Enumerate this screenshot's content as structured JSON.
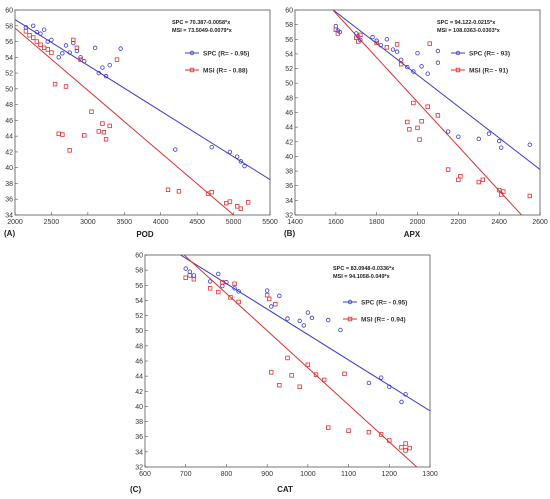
{
  "colors": {
    "spc": "#3b3bd6",
    "msi": "#e03030"
  },
  "chart_data": [
    {
      "type": "scatter",
      "panel_label": "(A)",
      "xlabel": "POD",
      "ylabel": "",
      "xlim": [
        2000,
        5500
      ],
      "ylim": [
        34,
        60
      ],
      "xticks": [
        2000,
        2500,
        3000,
        3500,
        4000,
        4500,
        5000,
        5500
      ],
      "yticks": [
        34,
        36,
        38,
        40,
        42,
        44,
        46,
        48,
        50,
        52,
        54,
        56,
        58,
        60
      ],
      "equations": [
        "SPC = 70.387-0.0058*x",
        "MSI = 73.5049-0.0079*x"
      ],
      "series": [
        {
          "name": "SPC (R= - 0.95)",
          "marker": "circle",
          "color": "#3b3bd6",
          "fit": {
            "intercept": 70.387,
            "slope": -0.0058
          },
          "points": [
            [
              2150,
              57.8
            ],
            [
              2250,
              58
            ],
            [
              2300,
              57.2
            ],
            [
              2350,
              57
            ],
            [
              2400,
              57.5
            ],
            [
              2450,
              56
            ],
            [
              2500,
              56.2
            ],
            [
              2600,
              54
            ],
            [
              2650,
              54.5
            ],
            [
              2700,
              55.5
            ],
            [
              2750,
              54.6
            ],
            [
              2800,
              55.8
            ],
            [
              2850,
              54.8
            ],
            [
              2900,
              54
            ],
            [
              2950,
              53.5
            ],
            [
              3100,
              55.2
            ],
            [
              3150,
              52
            ],
            [
              3200,
              52.7
            ],
            [
              3250,
              51.6
            ],
            [
              3300,
              53
            ],
            [
              3450,
              55.1
            ],
            [
              4200,
              42.3
            ],
            [
              4700,
              42.6
            ],
            [
              4950,
              42
            ],
            [
              5050,
              41.4
            ],
            [
              5100,
              40.8
            ],
            [
              5150,
              40.2
            ]
          ]
        },
        {
          "name": "MSI (R= - 0.88)",
          "marker": "square",
          "color": "#e03030",
          "fit": {
            "intercept": 73.5049,
            "slope": -0.0079
          },
          "points": [
            [
              2150,
              57.3
            ],
            [
              2200,
              56.8
            ],
            [
              2250,
              56.5
            ],
            [
              2300,
              56
            ],
            [
              2350,
              55.6
            ],
            [
              2400,
              55.2
            ],
            [
              2450,
              55
            ],
            [
              2500,
              54.6
            ],
            [
              2550,
              50.6
            ],
            [
              2600,
              44.3
            ],
            [
              2650,
              44.2
            ],
            [
              2700,
              50.3
            ],
            [
              2750,
              42.2
            ],
            [
              2800,
              56.2
            ],
            [
              2850,
              55.2
            ],
            [
              2900,
              53.7
            ],
            [
              2950,
              44.1
            ],
            [
              3050,
              47.1
            ],
            [
              3150,
              44.6
            ],
            [
              3200,
              45.6
            ],
            [
              3220,
              44.5
            ],
            [
              3250,
              43.6
            ],
            [
              3300,
              45.3
            ],
            [
              3400,
              53.7
            ],
            [
              4100,
              37.2
            ],
            [
              4250,
              37
            ],
            [
              4650,
              36.7
            ],
            [
              4700,
              36.9
            ],
            [
              4900,
              35.5
            ],
            [
              4950,
              35.7
            ],
            [
              5050,
              35.1
            ],
            [
              5200,
              35.6
            ],
            [
              5100,
              34.8
            ]
          ]
        }
      ]
    },
    {
      "type": "scatter",
      "panel_label": "(B)",
      "xlabel": "APX",
      "ylabel": "",
      "xlim": [
        1400,
        2600
      ],
      "ylim": [
        32,
        60
      ],
      "xticks": [
        1400,
        1600,
        1800,
        2000,
        2200,
        2400,
        2600
      ],
      "yticks": [
        32,
        34,
        36,
        38,
        40,
        42,
        44,
        46,
        48,
        50,
        52,
        54,
        56,
        58,
        60
      ],
      "equations": [
        "SPC = 94.122-0.0215*x",
        "MSI = 108.0363-0.0303*x"
      ],
      "series": [
        {
          "name": "SPC (R= - 93)",
          "marker": "circle",
          "color": "#3b3bd6",
          "fit": {
            "intercept": 94.122,
            "slope": -0.0215
          },
          "points": [
            [
              1600,
              57.8
            ],
            [
              1610,
              57.2
            ],
            [
              1620,
              57
            ],
            [
              1700,
              56.8
            ],
            [
              1710,
              56.4
            ],
            [
              1720,
              55.9
            ],
            [
              1780,
              56.3
            ],
            [
              1800,
              55.8
            ],
            [
              1820,
              55.2
            ],
            [
              1850,
              56
            ],
            [
              1880,
              54.6
            ],
            [
              1900,
              54.3
            ],
            [
              1920,
              53.2
            ],
            [
              1950,
              52.2
            ],
            [
              1980,
              51.6
            ],
            [
              2000,
              54.1
            ],
            [
              2020,
              52.3
            ],
            [
              2050,
              51.3
            ],
            [
              2100,
              52.8
            ],
            [
              2150,
              43.4
            ],
            [
              2200,
              42.7
            ],
            [
              2300,
              42.4
            ],
            [
              2350,
              43.1
            ],
            [
              2400,
              42.1
            ],
            [
              2410,
              41.2
            ],
            [
              2550,
              41.6
            ],
            [
              2100,
              54.4
            ]
          ]
        },
        {
          "name": "MSI (R= - 91)",
          "marker": "square",
          "color": "#e03030",
          "fit": {
            "intercept": 108.0363,
            "slope": -0.0303
          },
          "points": [
            [
              1600,
              57.3
            ],
            [
              1610,
              56.8
            ],
            [
              1700,
              56.2
            ],
            [
              1710,
              55.7
            ],
            [
              1720,
              56.6
            ],
            [
              1800,
              55.5
            ],
            [
              1850,
              54.9
            ],
            [
              1900,
              55.3
            ],
            [
              1920,
              52.6
            ],
            [
              1950,
              44.7
            ],
            [
              1960,
              43.7
            ],
            [
              1980,
              47.3
            ],
            [
              2000,
              43.9
            ],
            [
              2010,
              42.3
            ],
            [
              2020,
              44.8
            ],
            [
              2050,
              46.8
            ],
            [
              2060,
              55.4
            ],
            [
              2100,
              45.6
            ],
            [
              2150,
              38.2
            ],
            [
              2200,
              36.8
            ],
            [
              2210,
              37.3
            ],
            [
              2300,
              36.5
            ],
            [
              2320,
              36.8
            ],
            [
              2400,
              35.4
            ],
            [
              2410,
              34.8
            ],
            [
              2420,
              35.2
            ],
            [
              2550,
              34.6
            ]
          ]
        }
      ]
    },
    {
      "type": "scatter",
      "panel_label": "(C)",
      "xlabel": "CAT",
      "ylabel": "",
      "xlim": [
        600,
        1300
      ],
      "ylim": [
        32,
        60
      ],
      "xticks": [
        600,
        700,
        800,
        900,
        1000,
        1100,
        1200,
        1300
      ],
      "yticks": [
        32,
        34,
        36,
        38,
        40,
        42,
        44,
        46,
        48,
        50,
        52,
        54,
        56,
        58,
        60
      ],
      "equations": [
        "SPC = 83.0948-0.0336*x",
        "MSI = 94.1058-0.049*x"
      ],
      "series": [
        {
          "name": "SPC (R= - 0.95)",
          "marker": "circle",
          "color": "#3b3bd6",
          "fit": {
            "intercept": 83.0948,
            "slope": -0.0336
          },
          "points": [
            [
              700,
              58.2
            ],
            [
              710,
              57.8
            ],
            [
              720,
              57.3
            ],
            [
              760,
              56.5
            ],
            [
              780,
              57.5
            ],
            [
              790,
              55.9
            ],
            [
              800,
              56.4
            ],
            [
              820,
              55.6
            ],
            [
              830,
              55.2
            ],
            [
              900,
              55.3
            ],
            [
              910,
              53.2
            ],
            [
              930,
              54.6
            ],
            [
              950,
              51.6
            ],
            [
              980,
              51.3
            ],
            [
              990,
              50.7
            ],
            [
              1000,
              52.4
            ],
            [
              1010,
              51.7
            ],
            [
              1050,
              51.4
            ],
            [
              1080,
              50.1
            ],
            [
              1150,
              43.1
            ],
            [
              1180,
              43.8
            ],
            [
              1200,
              42.6
            ],
            [
              1230,
              40.6
            ],
            [
              1240,
              41.6
            ]
          ]
        },
        {
          "name": "MSI (R= - 0.94)",
          "marker": "square",
          "color": "#e03030",
          "fit": {
            "intercept": 94.1058,
            "slope": -0.049
          },
          "points": [
            [
              700,
              57
            ],
            [
              710,
              57.3
            ],
            [
              720,
              56.8
            ],
            [
              760,
              55.6
            ],
            [
              780,
              55.1
            ],
            [
              790,
              56.4
            ],
            [
              810,
              54.4
            ],
            [
              820,
              56.2
            ],
            [
              830,
              53.8
            ],
            [
              900,
              54.7
            ],
            [
              905,
              54.2
            ],
            [
              910,
              44.5
            ],
            [
              920,
              53.5
            ],
            [
              930,
              42.8
            ],
            [
              950,
              46.4
            ],
            [
              960,
              44.1
            ],
            [
              980,
              42.6
            ],
            [
              1000,
              45.5
            ],
            [
              1020,
              44.2
            ],
            [
              1040,
              43.5
            ],
            [
              1050,
              37.2
            ],
            [
              1090,
              44.3
            ],
            [
              1100,
              36.8
            ],
            [
              1150,
              36.6
            ],
            [
              1180,
              36.3
            ],
            [
              1200,
              35.5
            ],
            [
              1230,
              34.6
            ],
            [
              1240,
              34.2
            ],
            [
              1250,
              34.5
            ],
            [
              1240,
              35.1
            ]
          ]
        }
      ]
    }
  ]
}
